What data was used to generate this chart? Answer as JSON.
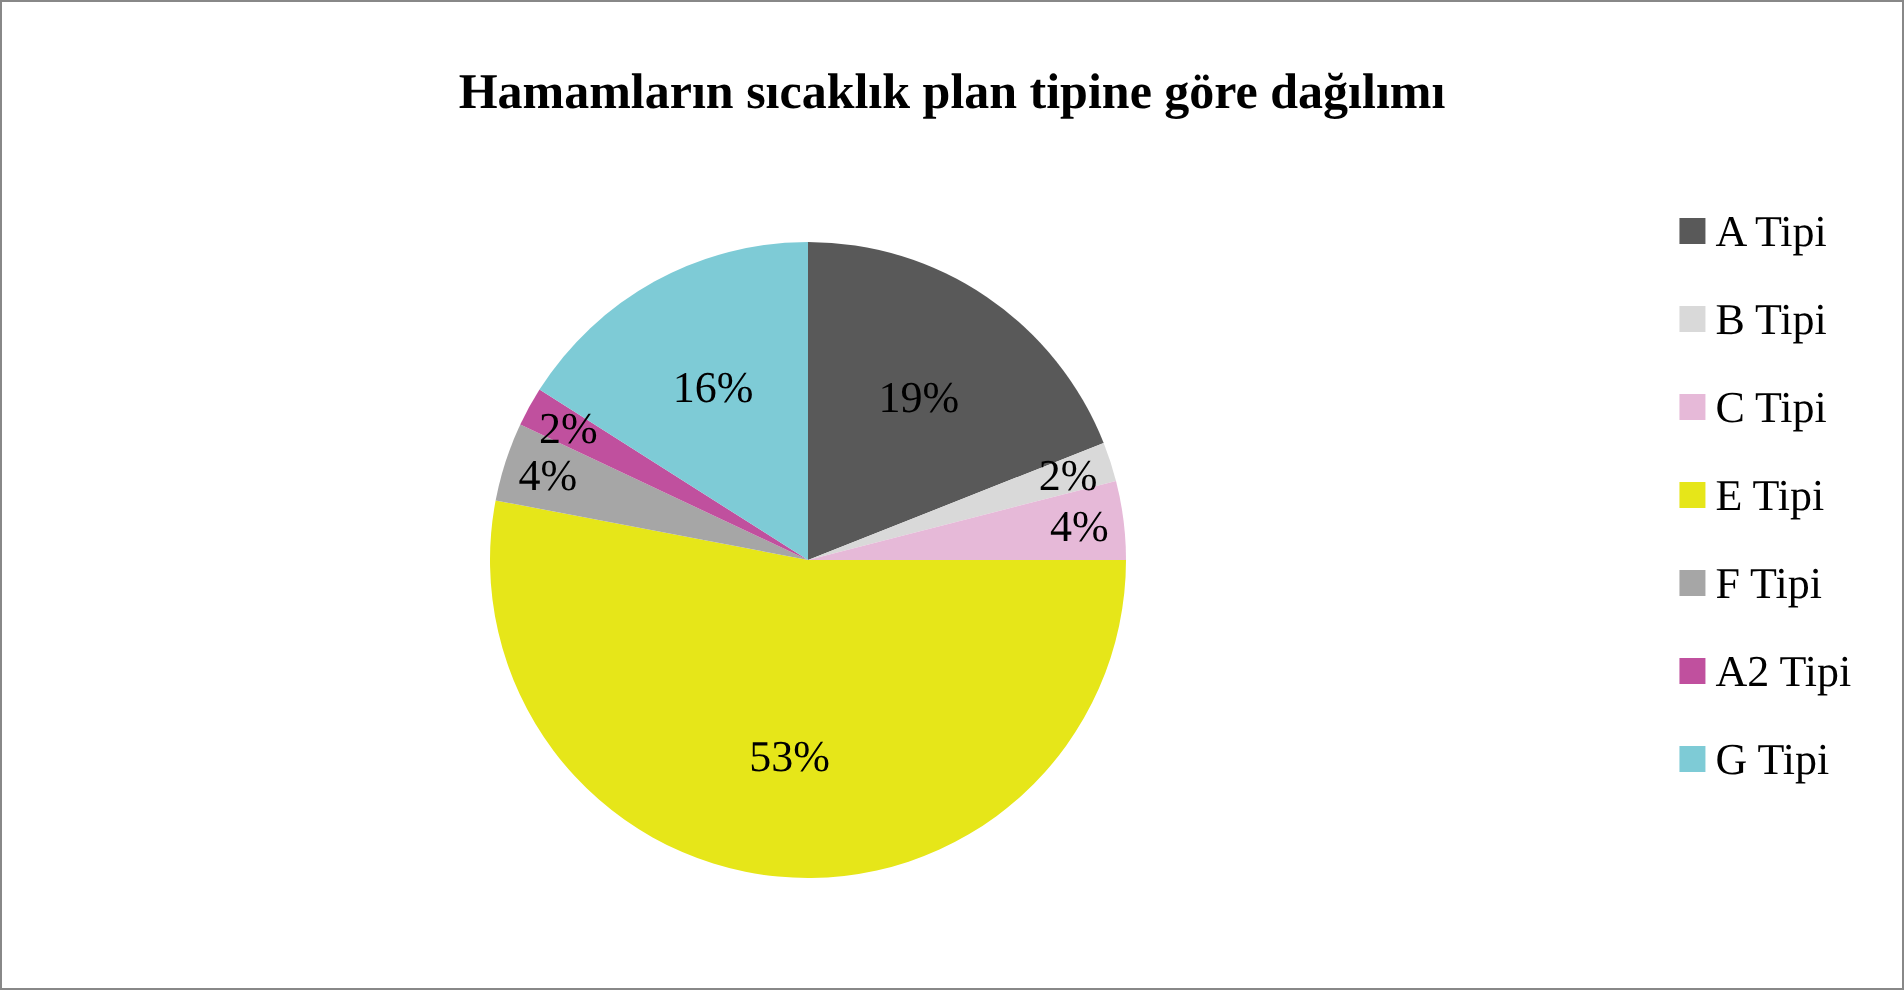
{
  "chart_data": {
    "type": "pie",
    "title": "Hamamların sıcaklık plan tipine göre dağılımı",
    "categories": [
      "A Tipi",
      "B Tipi",
      "C Tipi",
      "E Tipi",
      "F Tipi",
      "A2 Tipi",
      "G Tipi"
    ],
    "values": [
      19,
      2,
      4,
      53,
      4,
      2,
      16
    ],
    "colors": [
      "#595959",
      "#d9d9d9",
      "#e6b9d8",
      "#e6e619",
      "#a6a6a6",
      "#c0509e",
      "#7ecbd6"
    ],
    "value_labels": [
      "19%",
      "2%",
      "4%",
      "53%",
      "4%",
      "2%",
      "16%"
    ],
    "legend": "right"
  }
}
